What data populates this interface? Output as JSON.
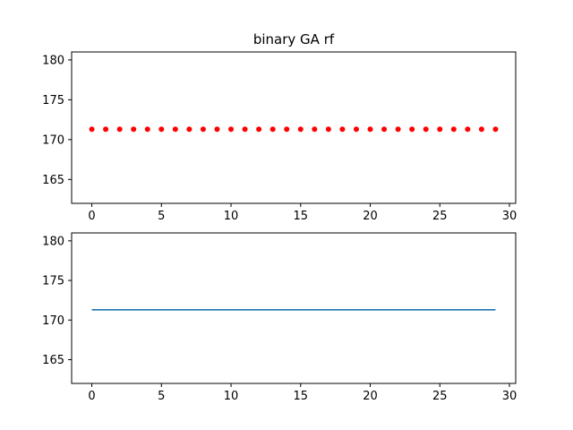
{
  "chart_data": [
    {
      "type": "scatter",
      "title": "binary GA rf",
      "xlabel": "",
      "ylabel": "",
      "x": [
        0,
        1,
        2,
        3,
        4,
        5,
        6,
        7,
        8,
        9,
        10,
        11,
        12,
        13,
        14,
        15,
        16,
        17,
        18,
        19,
        20,
        21,
        22,
        23,
        24,
        25,
        26,
        27,
        28,
        29
      ],
      "y": [
        171.3,
        171.3,
        171.3,
        171.3,
        171.3,
        171.3,
        171.3,
        171.3,
        171.3,
        171.3,
        171.3,
        171.3,
        171.3,
        171.3,
        171.3,
        171.3,
        171.3,
        171.3,
        171.3,
        171.3,
        171.3,
        171.3,
        171.3,
        171.3,
        171.3,
        171.3,
        171.3,
        171.3,
        171.3,
        171.3
      ],
      "xlim": [
        -1.45,
        30.45
      ],
      "ylim": [
        162,
        181
      ],
      "xticks": [
        0,
        5,
        10,
        15,
        20,
        25,
        30
      ],
      "yticks": [
        165,
        170,
        175,
        180
      ],
      "color": "#ff0000",
      "grid": false
    },
    {
      "type": "line",
      "title": "",
      "xlabel": "",
      "ylabel": "",
      "x": [
        0,
        1,
        2,
        3,
        4,
        5,
        6,
        7,
        8,
        9,
        10,
        11,
        12,
        13,
        14,
        15,
        16,
        17,
        18,
        19,
        20,
        21,
        22,
        23,
        24,
        25,
        26,
        27,
        28,
        29
      ],
      "y": [
        171.3,
        171.3,
        171.3,
        171.3,
        171.3,
        171.3,
        171.3,
        171.3,
        171.3,
        171.3,
        171.3,
        171.3,
        171.3,
        171.3,
        171.3,
        171.3,
        171.3,
        171.3,
        171.3,
        171.3,
        171.3,
        171.3,
        171.3,
        171.3,
        171.3,
        171.3,
        171.3,
        171.3,
        171.3,
        171.3
      ],
      "xlim": [
        -1.45,
        30.45
      ],
      "ylim": [
        162,
        181
      ],
      "xticks": [
        0,
        5,
        10,
        15,
        20,
        25,
        30
      ],
      "yticks": [
        165,
        170,
        175,
        180
      ],
      "color": "#1f77b4",
      "grid": false
    }
  ]
}
